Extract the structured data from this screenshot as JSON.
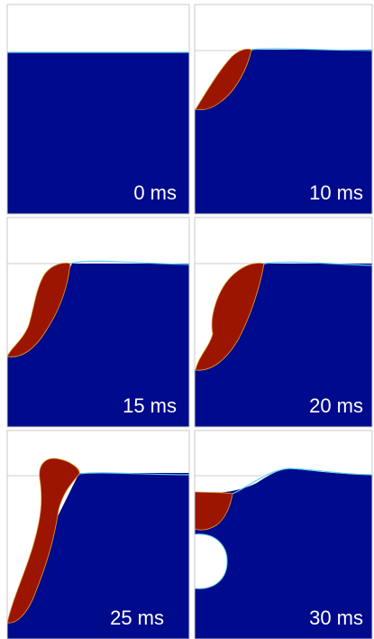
{
  "panels": [
    {
      "label": "0 ms"
    },
    {
      "label": "10 ms"
    },
    {
      "label": "15 ms"
    },
    {
      "label": "20 ms"
    },
    {
      "label": "25 ms"
    },
    {
      "label": "30 ms"
    }
  ]
}
